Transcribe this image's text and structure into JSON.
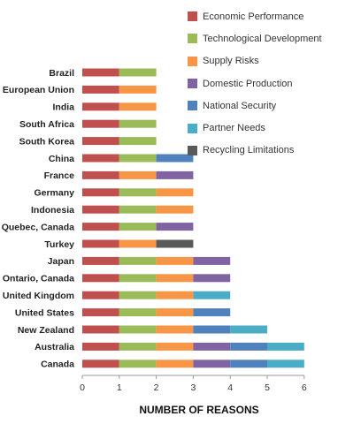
{
  "chart_data": {
    "type": "bar",
    "orientation": "horizontal",
    "stacked": true,
    "xlabel": "NUMBER OF REASONS",
    "xlim": [
      0,
      6
    ],
    "xticks": [
      "0",
      "1",
      "2",
      "3",
      "4",
      "5",
      "6"
    ],
    "grid": false,
    "legend_position": "top-right",
    "categories": [
      "Brazil",
      "European Union",
      "India",
      "South Africa",
      "South Korea",
      "China",
      "France",
      "Germany",
      "Indonesia",
      "Quebec, Canada",
      "Turkey",
      "Japan",
      "Ontario, Canada",
      "United Kingdom",
      "United States",
      "New Zealand",
      "Australia",
      "Canada"
    ],
    "series": [
      {
        "name": "Economic Performance",
        "color": "#c0504d",
        "values": [
          1,
          1,
          1,
          1,
          1,
          1,
          1,
          1,
          1,
          1,
          1,
          1,
          1,
          1,
          1,
          1,
          1,
          1
        ]
      },
      {
        "name": "Technological Development",
        "color": "#9bbb59",
        "values": [
          1,
          0,
          0,
          1,
          1,
          1,
          0,
          1,
          1,
          1,
          0,
          1,
          1,
          1,
          1,
          1,
          1,
          1
        ]
      },
      {
        "name": "Supply Risks",
        "color": "#f79646",
        "values": [
          0,
          1,
          1,
          0,
          0,
          0,
          1,
          1,
          1,
          0,
          1,
          1,
          1,
          1,
          1,
          1,
          1,
          1
        ]
      },
      {
        "name": "Domestic Production",
        "color": "#8064a2",
        "values": [
          0,
          0,
          0,
          0,
          0,
          0,
          1,
          0,
          0,
          1,
          0,
          1,
          1,
          0,
          0,
          0,
          1,
          1
        ]
      },
      {
        "name": "National Security",
        "color": "#4f81bd",
        "values": [
          0,
          0,
          0,
          0,
          0,
          1,
          0,
          0,
          0,
          0,
          0,
          0,
          0,
          0,
          1,
          1,
          1,
          1
        ]
      },
      {
        "name": "Partner Needs",
        "color": "#4bacc6",
        "values": [
          0,
          0,
          0,
          0,
          0,
          0,
          0,
          0,
          0,
          0,
          0,
          0,
          0,
          1,
          0,
          1,
          1,
          1
        ]
      },
      {
        "name": "Recycling Limitations",
        "color": "#595959",
        "values": [
          0,
          0,
          0,
          0,
          0,
          0,
          0,
          0,
          0,
          0,
          1,
          0,
          0,
          0,
          0,
          0,
          0,
          0
        ]
      }
    ]
  }
}
